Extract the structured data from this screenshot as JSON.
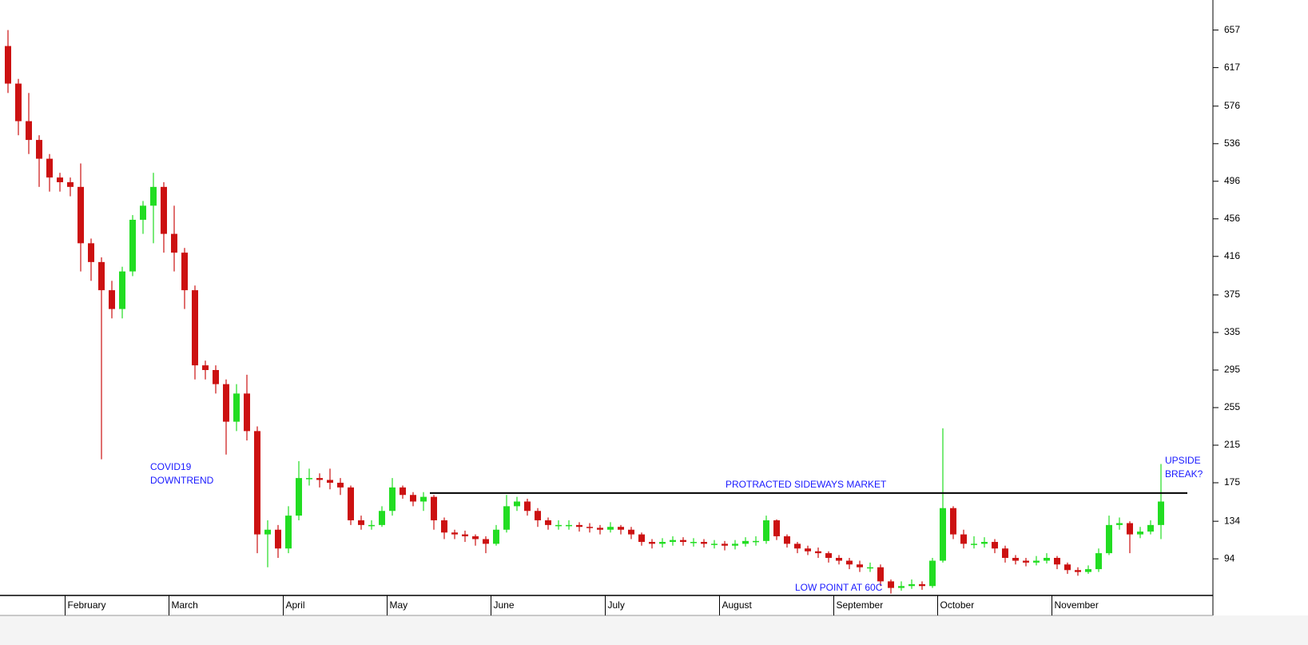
{
  "chart_data": {
    "type": "candlestick",
    "categories": [
      null,
      null,
      null,
      null,
      null,
      null,
      "February",
      null,
      null,
      null,
      null,
      null,
      null,
      null,
      null,
      null,
      "March",
      null,
      null,
      null,
      null,
      null,
      null,
      null,
      null,
      null,
      null,
      "April",
      null,
      null,
      null,
      null,
      null,
      null,
      null,
      null,
      null,
      "May",
      null,
      null,
      null,
      null,
      null,
      null,
      null,
      null,
      null,
      "June",
      null,
      null,
      null,
      null,
      null,
      null,
      null,
      null,
      null,
      null,
      "July",
      null,
      null,
      null,
      null,
      null,
      null,
      null,
      null,
      null,
      null,
      "August",
      null,
      null,
      null,
      null,
      null,
      null,
      null,
      null,
      null,
      null,
      "September",
      null,
      null,
      null,
      null,
      null,
      null,
      null,
      null,
      null,
      "October",
      null,
      null,
      null,
      null,
      null,
      null,
      null,
      null,
      null,
      null,
      "November",
      null,
      null,
      null,
      null,
      null,
      null,
      null,
      null,
      null,
      null
    ],
    "open": [
      640,
      600,
      560,
      540,
      520,
      500,
      495,
      490,
      430,
      410,
      380,
      360,
      400,
      455,
      470,
      490,
      440,
      420,
      380,
      300,
      295,
      280,
      240,
      270,
      230,
      120,
      125,
      105,
      140,
      180,
      180,
      178,
      175,
      170,
      135,
      130,
      130,
      145,
      170,
      162,
      155,
      160,
      135,
      122,
      120,
      118,
      115,
      110,
      125,
      150,
      155,
      145,
      135,
      130,
      130,
      130,
      128,
      127,
      125,
      128,
      125,
      120,
      112,
      110,
      112,
      114,
      112,
      112,
      110,
      110,
      108,
      110,
      113,
      113,
      135,
      118,
      110,
      105,
      102,
      100,
      95,
      92,
      88,
      85,
      85,
      70,
      63,
      65,
      67,
      65,
      92,
      148,
      120,
      110,
      110,
      112,
      105,
      95,
      92,
      90,
      92,
      95,
      88,
      82,
      80,
      83,
      100,
      130,
      132,
      120,
      123,
      130
    ],
    "high": [
      657,
      605,
      590,
      545,
      525,
      505,
      500,
      515,
      435,
      415,
      390,
      405,
      460,
      475,
      505,
      495,
      470,
      425,
      385,
      305,
      300,
      285,
      280,
      290,
      235,
      135,
      130,
      150,
      198,
      190,
      185,
      190,
      180,
      172,
      140,
      135,
      150,
      180,
      172,
      165,
      165,
      162,
      138,
      125,
      124,
      120,
      118,
      130,
      162,
      160,
      158,
      148,
      138,
      135,
      135,
      133,
      132,
      130,
      133,
      130,
      128,
      122,
      115,
      116,
      118,
      117,
      116,
      115,
      114,
      113,
      114,
      117,
      118,
      140,
      136,
      120,
      112,
      108,
      106,
      102,
      98,
      95,
      92,
      90,
      88,
      72,
      70,
      72,
      70,
      95,
      233,
      150,
      125,
      118,
      117,
      115,
      108,
      98,
      95,
      97,
      100,
      97,
      90,
      85,
      87,
      105,
      140,
      138,
      134,
      128,
      135,
      195
    ],
    "low": [
      590,
      545,
      525,
      490,
      485,
      485,
      480,
      400,
      390,
      200,
      350,
      350,
      395,
      440,
      430,
      420,
      400,
      360,
      285,
      285,
      270,
      205,
      230,
      220,
      100,
      85,
      95,
      100,
      135,
      172,
      170,
      168,
      162,
      130,
      125,
      125,
      128,
      140,
      158,
      150,
      145,
      125,
      115,
      115,
      112,
      108,
      100,
      108,
      122,
      145,
      140,
      128,
      125,
      125,
      125,
      123,
      122,
      120,
      122,
      120,
      115,
      108,
      105,
      106,
      108,
      108,
      107,
      106,
      105,
      103,
      104,
      107,
      108,
      110,
      114,
      106,
      100,
      98,
      95,
      90,
      88,
      83,
      80,
      80,
      65,
      57,
      60,
      62,
      61,
      63,
      90,
      115,
      105,
      105,
      106,
      100,
      90,
      88,
      86,
      87,
      89,
      83,
      78,
      76,
      78,
      80,
      98,
      125,
      100,
      116,
      120,
      115
    ],
    "close": [
      600,
      560,
      540,
      520,
      500,
      495,
      490,
      430,
      410,
      380,
      360,
      400,
      455,
      470,
      490,
      440,
      420,
      380,
      300,
      295,
      280,
      240,
      270,
      230,
      120,
      125,
      105,
      140,
      180,
      180,
      178,
      175,
      170,
      135,
      130,
      130,
      145,
      170,
      162,
      155,
      160,
      135,
      122,
      120,
      118,
      115,
      110,
      125,
      150,
      155,
      145,
      135,
      130,
      130,
      130,
      128,
      127,
      125,
      128,
      125,
      120,
      112,
      110,
      112,
      114,
      112,
      112,
      110,
      110,
      108,
      110,
      113,
      113,
      135,
      118,
      110,
      105,
      102,
      100,
      95,
      92,
      88,
      85,
      85,
      70,
      63,
      65,
      67,
      65,
      92,
      148,
      120,
      110,
      110,
      112,
      105,
      95,
      92,
      90,
      92,
      95,
      88,
      82,
      80,
      83,
      100,
      130,
      132,
      120,
      123,
      130,
      155
    ],
    "up_color": "#22dd22",
    "down_color": "#cc1111",
    "ylim": [
      55,
      689
    ],
    "yticks": [
      94,
      134,
      175,
      215,
      255,
      295,
      335,
      375,
      416,
      456,
      496,
      536,
      576,
      617,
      657
    ],
    "hline": 164,
    "annotations": [
      "COVID19",
      "DOWNTREND",
      "PROTRACTED SIDEWAYS MARKET",
      "LOW POINT AT 60C",
      "UPSIDE",
      "BREAK?"
    ]
  }
}
